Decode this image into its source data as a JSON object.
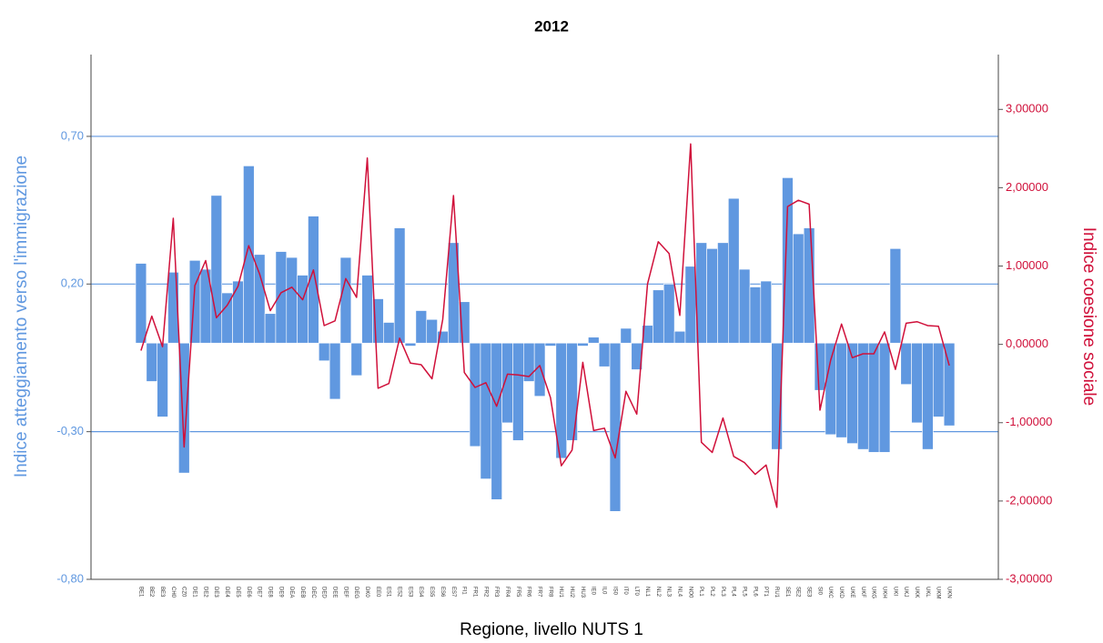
{
  "chart_data": {
    "type": "bar-line",
    "title": "2012",
    "x_label": "Regione, livello NUTS 1",
    "y_label": "Indice atteggiamento verso l'immigrazione",
    "y2_label": "Indice coesione sociale",
    "categories": [
      "BE1",
      "BE2",
      "BE3",
      "CH0",
      "CZ0",
      "DE1",
      "DE2",
      "DE3",
      "DE4",
      "DE5",
      "DE6",
      "DE7",
      "DE8",
      "DE9",
      "DEA",
      "DEB",
      "DEC",
      "DED",
      "DEE",
      "DEF",
      "DEG",
      "DK0",
      "EE0",
      "ES1",
      "ES2",
      "ES3",
      "ES4",
      "ES5",
      "ES6",
      "ES7",
      "FI1",
      "FR1",
      "FR2",
      "FR3",
      "FR4",
      "FR5",
      "FR6",
      "FR7",
      "FR8",
      "HU1",
      "HU2",
      "HU3",
      "IE0",
      "IL0",
      "IS0",
      "IT0",
      "LT0",
      "NL1",
      "NL2",
      "NL3",
      "NL4",
      "NO0",
      "PL1",
      "PL2",
      "PL3",
      "PL4",
      "PL5",
      "PL6",
      "PT1",
      "RU1",
      "SE1",
      "SE2",
      "SE3",
      "SI0",
      "UKC",
      "UKD",
      "UKE",
      "UKF",
      "UKG",
      "UKH",
      "UKI",
      "UKJ",
      "UKK",
      "UKL",
      "UKM",
      "UKN"
    ],
    "series": [
      {
        "name": "Indice atteggiamento verso l'immigrazione",
        "kind": "bar",
        "color": "#6098e0",
        "axis": "y",
        "values": [
          0.27,
          -0.13,
          -0.25,
          0.24,
          -0.44,
          0.28,
          0.25,
          0.5,
          0.17,
          0.21,
          0.6,
          0.3,
          0.1,
          0.31,
          0.29,
          0.23,
          0.43,
          -0.06,
          -0.19,
          0.29,
          -0.11,
          0.23,
          0.15,
          0.07,
          0.39,
          -0.01,
          0.11,
          0.08,
          0.04,
          0.34,
          0.14,
          -0.35,
          -0.46,
          -0.53,
          -0.27,
          -0.33,
          -0.13,
          -0.18,
          -0.01,
          -0.39,
          -0.33,
          -0.01,
          0.02,
          -0.08,
          -0.57,
          0.05,
          -0.09,
          0.06,
          0.18,
          0.2,
          0.04,
          0.26,
          0.34,
          0.32,
          0.34,
          0.49,
          0.25,
          0.19,
          0.21,
          -0.36,
          0.56,
          0.37,
          0.39,
          -0.16,
          -0.31,
          -0.32,
          -0.34,
          -0.36,
          -0.37,
          -0.37,
          0.32,
          -0.14,
          -0.27,
          -0.36,
          -0.25,
          -0.28
        ]
      },
      {
        "name": "Indice coesione sociale",
        "kind": "line",
        "color": "#d0103a",
        "axis": "y2",
        "values": [
          -0.08,
          0.36,
          -0.03,
          1.61,
          -1.31,
          0.75,
          1.07,
          0.34,
          0.5,
          0.74,
          1.26,
          0.9,
          0.43,
          0.66,
          0.73,
          0.57,
          0.95,
          0.24,
          0.3,
          0.84,
          0.6,
          2.38,
          -0.56,
          -0.5,
          0.08,
          -0.24,
          -0.26,
          -0.44,
          0.32,
          1.9,
          -0.36,
          -0.55,
          -0.49,
          -0.79,
          -0.38,
          -0.39,
          -0.41,
          -0.27,
          -0.68,
          -1.55,
          -1.35,
          -0.23,
          -1.1,
          -1.07,
          -1.45,
          -0.6,
          -0.89,
          0.77,
          1.31,
          1.16,
          0.37,
          2.56,
          -1.25,
          -1.38,
          -0.94,
          -1.43,
          -1.51,
          -1.66,
          -1.54,
          -2.08,
          1.76,
          1.84,
          1.79,
          -0.84,
          -0.2,
          0.26,
          -0.17,
          -0.12,
          -0.12,
          0.16,
          -0.32,
          0.27,
          0.29,
          0.24,
          0.23,
          -0.27
        ]
      }
    ],
    "ylim": [
      -0.8,
      0.977
    ],
    "yticks": [
      {
        "value": -0.8,
        "label": "-0,80"
      },
      {
        "value": -0.3,
        "label": "-0,30"
      },
      {
        "value": 0.2,
        "label": "0,20"
      },
      {
        "value": 0.7,
        "label": "0,70"
      }
    ],
    "y2lim": [
      -3,
      3.7
    ],
    "y2ticks": [
      {
        "value": -3,
        "label": "-3,00000"
      },
      {
        "value": -2,
        "label": "-2,00000"
      },
      {
        "value": -1,
        "label": "-1,00000"
      },
      {
        "value": 0,
        "label": "0,00000"
      },
      {
        "value": 1,
        "label": "1,00000"
      },
      {
        "value": 2,
        "label": "2,00000"
      },
      {
        "value": 3,
        "label": "3,00000"
      }
    ],
    "grid": true
  }
}
